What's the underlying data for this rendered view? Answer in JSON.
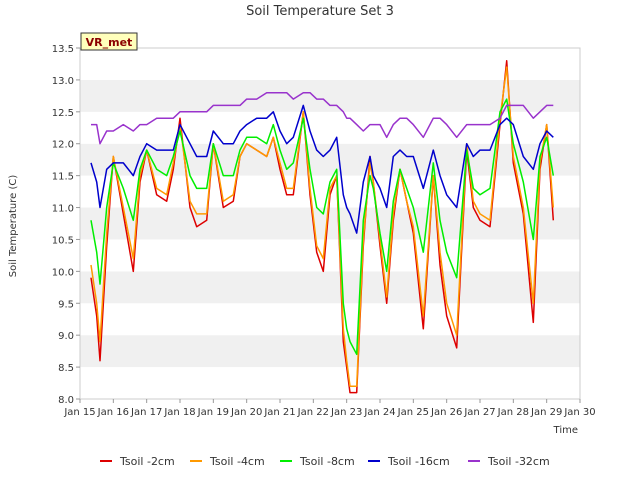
{
  "chart_data": {
    "type": "line",
    "title": "Soil Temperature Set 3",
    "xlabel": "Time",
    "ylabel": "Soil Temperature (C)",
    "station_badge": "VR_met",
    "xlim": [
      15,
      30
    ],
    "ylim": [
      8.0,
      13.5
    ],
    "x_ticks": [
      {
        "value": 15,
        "label": "Jan 15"
      },
      {
        "value": 16,
        "label": "Jan 16"
      },
      {
        "value": 17,
        "label": "Jan 17"
      },
      {
        "value": 18,
        "label": "Jan 18"
      },
      {
        "value": 19,
        "label": "Jan 19"
      },
      {
        "value": 20,
        "label": "Jan 20"
      },
      {
        "value": 21,
        "label": "Jan 21"
      },
      {
        "value": 22,
        "label": "Jan 22"
      },
      {
        "value": 23,
        "label": "Jan 23"
      },
      {
        "value": 24,
        "label": "Jan 24"
      },
      {
        "value": 25,
        "label": "Jan 25"
      },
      {
        "value": 26,
        "label": "Jan 26"
      },
      {
        "value": 27,
        "label": "Jan 27"
      },
      {
        "value": 28,
        "label": "Jan 28"
      },
      {
        "value": 29,
        "label": "Jan 29"
      },
      {
        "value": 30,
        "label": "Jan 30"
      }
    ],
    "y_ticks": [
      {
        "value": 8.0,
        "label": "8.0"
      },
      {
        "value": 8.5,
        "label": "8.5"
      },
      {
        "value": 9.0,
        "label": "9.0"
      },
      {
        "value": 9.5,
        "label": "9.5"
      },
      {
        "value": 10.0,
        "label": "10.0"
      },
      {
        "value": 10.5,
        "label": "10.5"
      },
      {
        "value": 11.0,
        "label": "11.0"
      },
      {
        "value": 11.5,
        "label": "11.5"
      },
      {
        "value": 12.0,
        "label": "12.0"
      },
      {
        "value": 12.5,
        "label": "12.5"
      },
      {
        "value": 13.0,
        "label": "13.0"
      },
      {
        "value": 13.5,
        "label": "13.5"
      }
    ],
    "grid": "horizontal bands",
    "legend_position": "bottom",
    "x": [
      15.33,
      15.5,
      15.6,
      15.8,
      16.0,
      16.3,
      16.6,
      16.8,
      17.0,
      17.3,
      17.6,
      17.8,
      18.0,
      18.3,
      18.5,
      18.8,
      19.0,
      19.3,
      19.6,
      19.8,
      20.0,
      20.3,
      20.6,
      20.8,
      21.0,
      21.2,
      21.4,
      21.7,
      21.9,
      22.1,
      22.3,
      22.5,
      22.7,
      22.9,
      23.0,
      23.1,
      23.3,
      23.5,
      23.7,
      23.8,
      24.0,
      24.2,
      24.4,
      24.6,
      24.8,
      25.0,
      25.3,
      25.6,
      25.8,
      26.0,
      26.3,
      26.6,
      26.8,
      27.0,
      27.3,
      27.6,
      27.8,
      28.0,
      28.3,
      28.6,
      28.8,
      29.0,
      29.2
    ],
    "series": [
      {
        "name": "Tsoil -2cm",
        "color": "#dd0000",
        "values": [
          9.9,
          9.3,
          8.6,
          10.4,
          11.8,
          10.9,
          10.0,
          11.4,
          11.9,
          11.2,
          11.1,
          11.6,
          12.4,
          11.0,
          10.7,
          10.8,
          12.0,
          11.0,
          11.1,
          11.8,
          12.0,
          11.9,
          11.8,
          12.1,
          11.6,
          11.2,
          11.2,
          12.5,
          11.2,
          10.3,
          10.0,
          11.2,
          11.5,
          8.9,
          8.5,
          8.1,
          8.1,
          10.4,
          11.8,
          11.4,
          10.4,
          9.5,
          10.8,
          11.6,
          11.1,
          10.6,
          9.1,
          11.5,
          10.1,
          9.3,
          8.8,
          11.9,
          11.0,
          10.8,
          10.7,
          12.3,
          13.3,
          11.7,
          10.9,
          9.2,
          11.6,
          12.3,
          10.8
        ]
      },
      {
        "name": "Tsoil -4cm",
        "color": "#ff9900",
        "values": [
          10.1,
          9.5,
          8.9,
          10.6,
          11.8,
          11.0,
          10.2,
          11.5,
          11.9,
          11.3,
          11.2,
          11.7,
          12.3,
          11.1,
          10.9,
          10.9,
          12.0,
          11.1,
          11.2,
          11.8,
          12.0,
          11.9,
          11.8,
          12.1,
          11.7,
          11.3,
          11.3,
          12.5,
          11.3,
          10.4,
          10.2,
          11.3,
          11.5,
          9.1,
          8.6,
          8.2,
          8.2,
          10.5,
          11.7,
          11.4,
          10.5,
          9.6,
          10.9,
          11.6,
          11.1,
          10.7,
          9.3,
          11.5,
          10.3,
          9.5,
          9.0,
          12.0,
          11.1,
          10.9,
          10.8,
          12.4,
          13.2,
          11.8,
          11.0,
          9.5,
          11.7,
          12.3,
          11.0
        ]
      },
      {
        "name": "Tsoil -8cm",
        "color": "#00ee00",
        "values": [
          10.8,
          10.3,
          9.8,
          11.0,
          11.7,
          11.3,
          10.8,
          11.6,
          11.9,
          11.6,
          11.5,
          11.8,
          12.2,
          11.5,
          11.3,
          11.3,
          12.0,
          11.5,
          11.5,
          11.9,
          12.1,
          12.1,
          12.0,
          12.3,
          11.9,
          11.6,
          11.7,
          12.4,
          11.6,
          11.0,
          10.9,
          11.4,
          11.6,
          9.5,
          9.1,
          8.9,
          8.7,
          10.8,
          11.5,
          11.3,
          10.6,
          10.0,
          11.1,
          11.6,
          11.3,
          11.0,
          10.3,
          11.7,
          10.8,
          10.3,
          9.9,
          11.9,
          11.3,
          11.2,
          11.3,
          12.5,
          12.7,
          12.0,
          11.4,
          10.5,
          11.8,
          12.1,
          11.5
        ]
      },
      {
        "name": "Tsoil -16cm",
        "color": "#0000cc",
        "values": [
          11.7,
          11.4,
          11.0,
          11.6,
          11.7,
          11.7,
          11.5,
          11.8,
          12.0,
          11.9,
          11.9,
          11.9,
          12.3,
          12.0,
          11.8,
          11.8,
          12.2,
          12.0,
          12.0,
          12.2,
          12.3,
          12.4,
          12.4,
          12.5,
          12.2,
          12.0,
          12.1,
          12.6,
          12.2,
          11.9,
          11.8,
          11.9,
          12.1,
          11.2,
          11.0,
          10.9,
          10.6,
          11.4,
          11.8,
          11.5,
          11.3,
          11.0,
          11.8,
          11.9,
          11.8,
          11.8,
          11.3,
          11.9,
          11.5,
          11.2,
          11.0,
          12.0,
          11.8,
          11.9,
          11.9,
          12.3,
          12.4,
          12.3,
          11.8,
          11.6,
          12.0,
          12.2,
          12.1
        ]
      },
      {
        "name": "Tsoil -32cm",
        "color": "#9933cc",
        "values": [
          12.3,
          12.3,
          12.0,
          12.2,
          12.2,
          12.3,
          12.2,
          12.3,
          12.3,
          12.4,
          12.4,
          12.4,
          12.5,
          12.5,
          12.5,
          12.5,
          12.6,
          12.6,
          12.6,
          12.6,
          12.7,
          12.7,
          12.8,
          12.8,
          12.8,
          12.8,
          12.7,
          12.8,
          12.8,
          12.7,
          12.7,
          12.6,
          12.6,
          12.5,
          12.4,
          12.4,
          12.3,
          12.2,
          12.3,
          12.3,
          12.3,
          12.1,
          12.3,
          12.4,
          12.4,
          12.3,
          12.1,
          12.4,
          12.4,
          12.3,
          12.1,
          12.3,
          12.3,
          12.3,
          12.3,
          12.4,
          12.6,
          12.6,
          12.6,
          12.4,
          12.5,
          12.6,
          12.6
        ]
      }
    ]
  }
}
